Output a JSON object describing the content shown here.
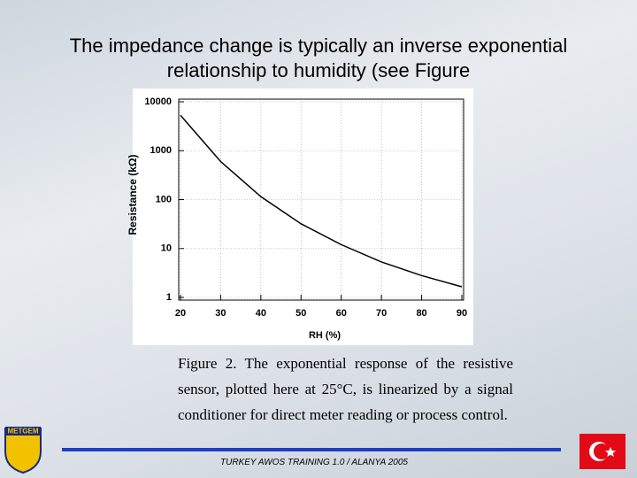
{
  "slide_title": "The impedance change is typically an inverse exponential relationship to humidity (see Figure",
  "caption": "Figure 2. The exponential response of the resistive sensor, plotted here at 25°C, is linearized by a signal conditioner for direct meter reading or process control.",
  "footer": "TURKEY AWOS TRAINING 1.0 / ALANYA 2005",
  "logo_text": "METGEM",
  "chart_data": {
    "type": "line",
    "xlabel": "RH (%)",
    "ylabel": "Resistance (kΩ)",
    "x": [
      20,
      30,
      40,
      50,
      60,
      70,
      80,
      90
    ],
    "values": [
      5300,
      600,
      115,
      32,
      12,
      5.3,
      2.8,
      1.65
    ],
    "color": "#000000",
    "xlim": [
      20,
      90
    ],
    "xticks": [
      20,
      30,
      40,
      50,
      60,
      70,
      80,
      90
    ],
    "ylim": [
      1,
      10000
    ],
    "yticks": [
      1,
      10,
      100,
      1000,
      10000
    ],
    "yscale": "log",
    "grid": true
  }
}
